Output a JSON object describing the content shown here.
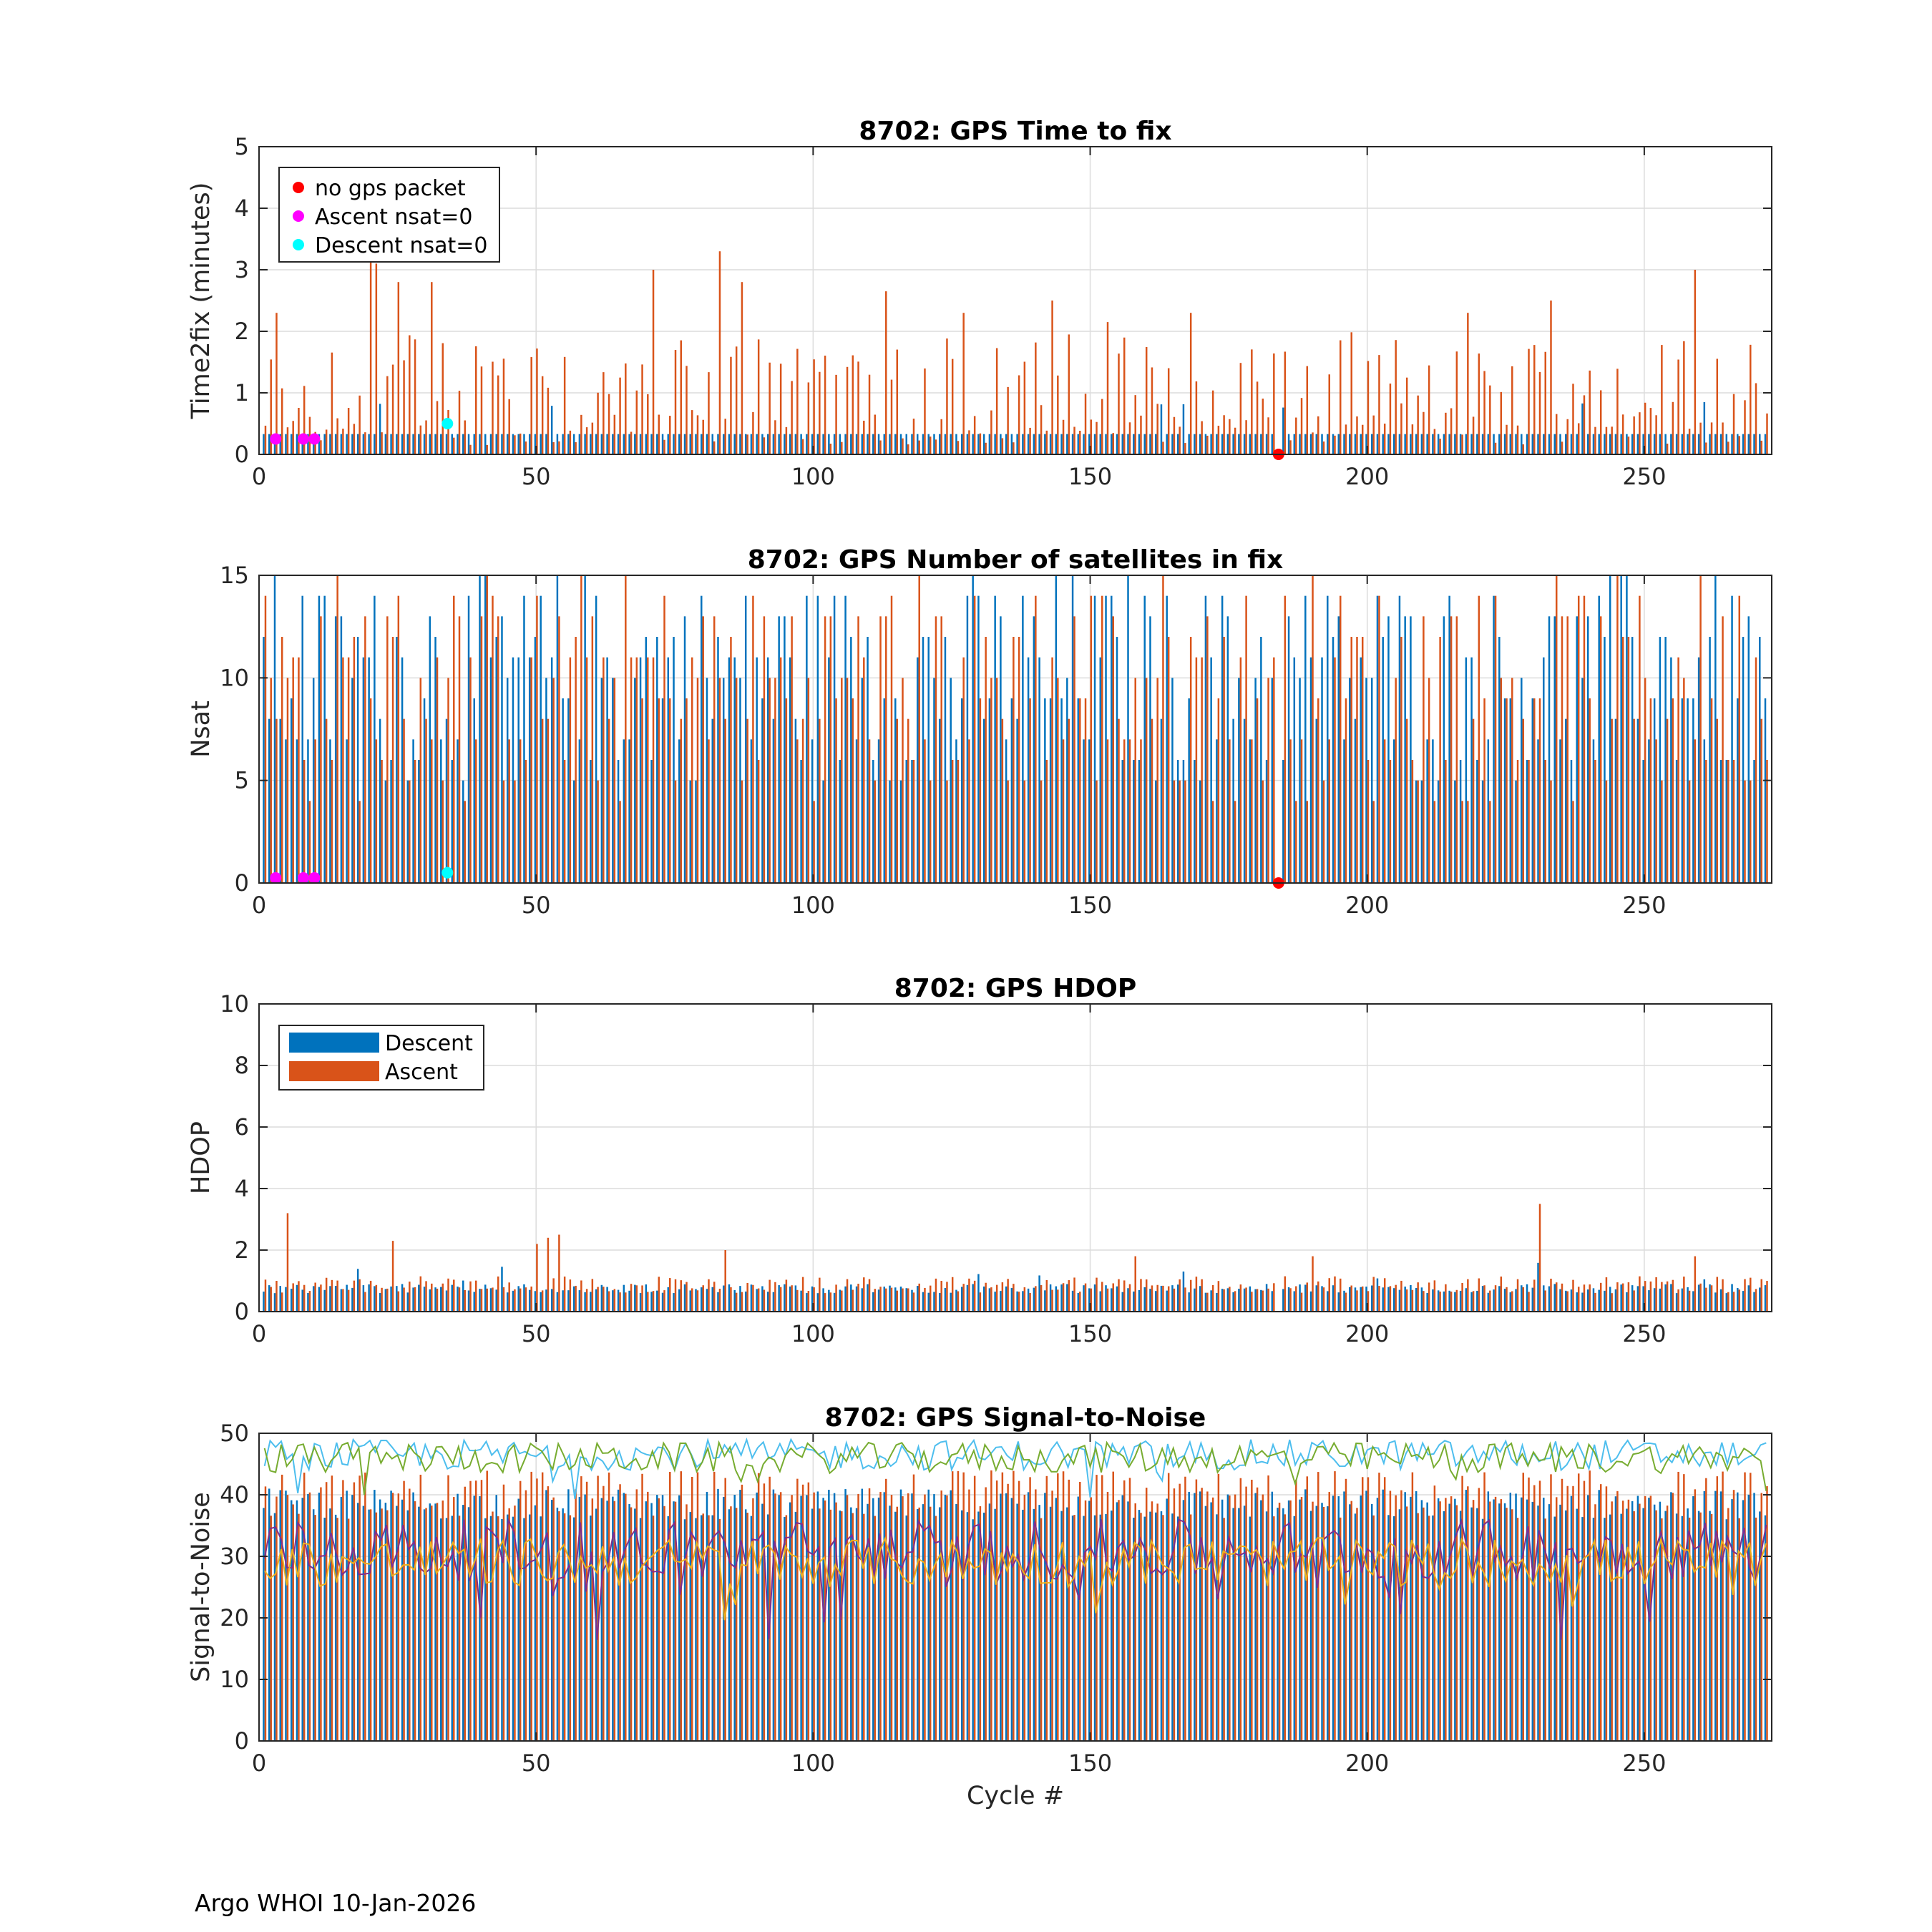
{
  "footer": "Argo WHOI 10-Jan-2026",
  "colors": {
    "descent": "#0072BD",
    "ascent": "#D95319",
    "no_gps": "#FF0000",
    "ascent_nsat0": "#FF00FF",
    "descent_nsat0": "#00FFFF",
    "snr_lines": [
      "#4DBEEE",
      "#77AC30",
      "#7E2F8E",
      "#EDB120"
    ]
  },
  "chart_data": [
    {
      "type": "bar",
      "title": "8702: GPS Time to fix",
      "ylabel": "Time2fix (minutes)",
      "xlabel": "",
      "xlim": [
        0,
        273
      ],
      "ylim": [
        0,
        5
      ],
      "xticks": [
        "0",
        "50",
        "100",
        "150",
        "200",
        "250"
      ],
      "yticks": [
        "0",
        "1",
        "2",
        "3",
        "4",
        "5"
      ],
      "grid": true,
      "legend_position": "top-left",
      "series": [
        {
          "name": "Descent",
          "role": "descent",
          "typical": 0.33,
          "min": 0.3,
          "max": 0.85,
          "spike_values": [
            0.8,
            0.85,
            0.8
          ]
        },
        {
          "name": "Ascent",
          "role": "ascent",
          "typical": 0.6,
          "min": 0.15,
          "max": 3.3,
          "spikes": [
            [
              3,
              2.3
            ],
            [
              20,
              3.2
            ],
            [
              21,
              3.1
            ],
            [
              25,
              2.8
            ],
            [
              31,
              2.8
            ],
            [
              71,
              3.0
            ],
            [
              83,
              3.3
            ],
            [
              87,
              2.8
            ],
            [
              113,
              2.65
            ],
            [
              127,
              2.3
            ],
            [
              143,
              2.5
            ],
            [
              153,
              2.15
            ],
            [
              168,
              2.3
            ],
            [
              218,
              2.3
            ],
            [
              233,
              2.5
            ],
            [
              259,
              3.0
            ]
          ]
        }
      ],
      "markers": [
        {
          "name": "no gps packet",
          "role": "no_gps",
          "points": [
            [
              184,
              0
            ]
          ]
        },
        {
          "name": "Ascent nsat=0",
          "role": "ascent_nsat0",
          "points": [
            [
              3,
              0.25
            ],
            [
              8,
              0.25
            ],
            [
              10,
              0.25
            ]
          ]
        },
        {
          "name": "Descent nsat=0",
          "role": "descent_nsat0",
          "points": [
            [
              34,
              0.5
            ]
          ]
        }
      ]
    },
    {
      "type": "bar",
      "title": "8702: GPS Number of satellites in fix",
      "ylabel": "Nsat",
      "xlabel": "",
      "xlim": [
        0,
        273
      ],
      "ylim": [
        0,
        15
      ],
      "xticks": [
        "0",
        "50",
        "100",
        "150",
        "200",
        "250"
      ],
      "yticks": [
        "0",
        "5",
        "10",
        "15"
      ],
      "grid": true,
      "series": [
        {
          "name": "Descent",
          "role": "descent",
          "min": 5,
          "max": 15,
          "typical": 11
        },
        {
          "name": "Ascent",
          "role": "ascent",
          "min": 4,
          "max": 15,
          "typical": 9
        }
      ],
      "markers": [
        {
          "name": "no gps packet",
          "role": "no_gps",
          "points": [
            [
              184,
              0
            ]
          ]
        },
        {
          "name": "Ascent nsat=0",
          "role": "ascent_nsat0",
          "points": [
            [
              3,
              0.25
            ],
            [
              8,
              0.25
            ],
            [
              10,
              0.25
            ]
          ]
        },
        {
          "name": "Descent nsat=0",
          "role": "descent_nsat0",
          "points": [
            [
              34,
              0.5
            ]
          ]
        }
      ]
    },
    {
      "type": "bar",
      "title": "8702: GPS HDOP",
      "ylabel": "HDOP",
      "xlabel": "",
      "xlim": [
        0,
        273
      ],
      "ylim": [
        0,
        10
      ],
      "xticks": [
        "0",
        "50",
        "100",
        "150",
        "200",
        "250"
      ],
      "yticks": [
        "0",
        "2",
        "4",
        "6",
        "8",
        "10"
      ],
      "grid": true,
      "legend_position": "top-left",
      "series": [
        {
          "name": "Descent",
          "role": "descent",
          "min": 0.6,
          "max": 1.6,
          "typical": 0.75
        },
        {
          "name": "Ascent",
          "role": "ascent",
          "min": 0.6,
          "max": 3.5,
          "typical": 0.9,
          "spikes": [
            [
              5,
              3.2
            ],
            [
              24,
              2.3
            ],
            [
              50,
              2.2
            ],
            [
              52,
              2.4
            ],
            [
              54,
              2.5
            ],
            [
              84,
              2.0
            ],
            [
              158,
              1.8
            ],
            [
              190,
              1.8
            ],
            [
              231,
              3.5
            ],
            [
              259,
              1.8
            ]
          ]
        }
      ]
    },
    {
      "type": "bar",
      "title": "8702: GPS Signal-to-Noise",
      "ylabel": "Signal-to-Noise",
      "xlabel": "Cycle #",
      "xlim": [
        0,
        273
      ],
      "ylim": [
        0,
        50
      ],
      "xticks": [
        "0",
        "50",
        "100",
        "150",
        "200",
        "250"
      ],
      "yticks": [
        "0",
        "10",
        "20",
        "30",
        "40",
        "50"
      ],
      "grid": true,
      "series": [
        {
          "role": "descent",
          "kind": "bar",
          "min": 36,
          "max": 41,
          "typical": 39
        },
        {
          "role": "ascent",
          "kind": "bar",
          "min": 36,
          "max": 44,
          "typical": 40
        },
        {
          "role": "line1",
          "kind": "line",
          "mean": 46.5,
          "amp": 2.5
        },
        {
          "role": "line2",
          "kind": "line",
          "mean": 46,
          "amp": 2.5
        },
        {
          "role": "line3",
          "kind": "line",
          "mean": 31,
          "amp": 5
        },
        {
          "role": "line4",
          "kind": "line",
          "mean": 29,
          "amp": 4
        }
      ]
    }
  ]
}
